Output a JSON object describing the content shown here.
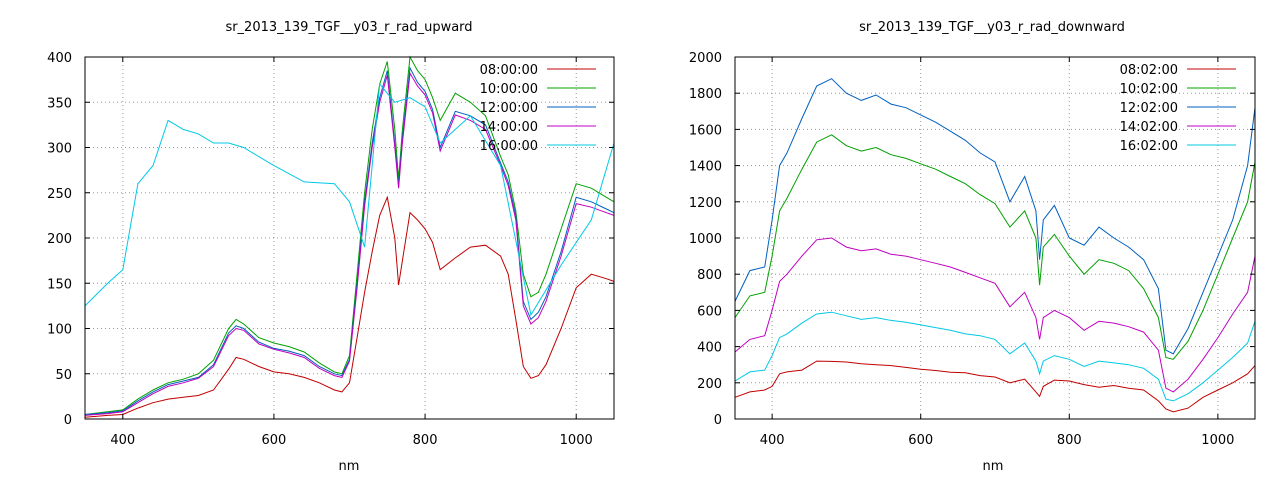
{
  "charts": [
    {
      "title": "sr_2013_139_TGF__y03_r_rad_upward",
      "xlabel": "nm",
      "xlim": [
        350,
        1050
      ],
      "ylim": [
        0,
        400
      ],
      "xticks": [
        400,
        600,
        800,
        1000
      ],
      "yticks": [
        0,
        50,
        100,
        150,
        200,
        250,
        300,
        350,
        400
      ],
      "legend": [
        "08:00:00",
        "10:00:00",
        "12:00:00",
        "14:00:00",
        "16:00:00"
      ]
    },
    {
      "title": "sr_2013_139_TGF__y03_r_rad_downward",
      "xlabel": "nm",
      "xlim": [
        350,
        1050
      ],
      "ylim": [
        0,
        2000
      ],
      "xticks": [
        400,
        600,
        800,
        1000
      ],
      "yticks": [
        0,
        200,
        400,
        600,
        800,
        1000,
        1200,
        1400,
        1600,
        1800,
        2000
      ],
      "legend": [
        "08:02:00",
        "10:02:00",
        "12:02:00",
        "14:02:00",
        "16:02:00"
      ]
    }
  ],
  "chart_data": [
    {
      "type": "line",
      "title": "sr_2013_139_TGF__y03_r_rad_upward",
      "xlabel": "nm",
      "ylabel": "",
      "xlim": [
        350,
        1050
      ],
      "ylim": [
        0,
        400
      ],
      "grid": true,
      "legend_position": "top-right",
      "series": [
        {
          "name": "08:00:00",
          "color": "#c00000",
          "x": [
            350,
            380,
            400,
            420,
            440,
            460,
            480,
            500,
            520,
            540,
            550,
            560,
            580,
            600,
            620,
            640,
            660,
            680,
            690,
            700,
            710,
            720,
            730,
            740,
            750,
            760,
            765,
            770,
            780,
            790,
            800,
            810,
            820,
            840,
            860,
            880,
            900,
            910,
            920,
            930,
            940,
            950,
            960,
            980,
            1000,
            1020,
            1040,
            1050
          ],
          "y": [
            2,
            4,
            5,
            12,
            18,
            22,
            24,
            26,
            32,
            55,
            68,
            66,
            58,
            52,
            50,
            46,
            40,
            32,
            30,
            40,
            90,
            140,
            185,
            225,
            245,
            200,
            148,
            175,
            228,
            220,
            210,
            195,
            165,
            178,
            190,
            192,
            180,
            160,
            110,
            58,
            45,
            48,
            60,
            100,
            145,
            160,
            155,
            152
          ]
        },
        {
          "name": "10:00:00",
          "color": "#00a000",
          "x": [
            350,
            380,
            400,
            420,
            440,
            460,
            480,
            500,
            520,
            540,
            550,
            560,
            580,
            600,
            620,
            640,
            660,
            680,
            690,
            700,
            710,
            720,
            730,
            740,
            750,
            760,
            765,
            770,
            780,
            790,
            800,
            810,
            820,
            840,
            860,
            880,
            900,
            910,
            920,
            930,
            940,
            950,
            960,
            980,
            1000,
            1020,
            1040,
            1050
          ],
          "y": [
            5,
            8,
            10,
            22,
            32,
            40,
            44,
            50,
            65,
            100,
            110,
            105,
            90,
            84,
            80,
            74,
            62,
            52,
            50,
            70,
            160,
            250,
            320,
            370,
            395,
            320,
            265,
            320,
            400,
            385,
            375,
            355,
            330,
            360,
            350,
            335,
            290,
            270,
            230,
            160,
            135,
            140,
            160,
            210,
            260,
            255,
            245,
            240
          ]
        },
        {
          "name": "12:00:00",
          "color": "#0060c0",
          "x": [
            350,
            380,
            400,
            420,
            440,
            460,
            480,
            500,
            520,
            540,
            550,
            560,
            580,
            600,
            620,
            640,
            660,
            680,
            690,
            700,
            710,
            720,
            730,
            740,
            750,
            760,
            765,
            770,
            780,
            790,
            800,
            810,
            820,
            840,
            860,
            880,
            900,
            910,
            920,
            930,
            940,
            950,
            960,
            980,
            1000,
            1020,
            1040,
            1050
          ],
          "y": [
            5,
            7,
            9,
            20,
            30,
            38,
            42,
            46,
            60,
            95,
            103,
            100,
            85,
            78,
            75,
            70,
            58,
            50,
            48,
            66,
            150,
            240,
            305,
            355,
            385,
            305,
            258,
            310,
            388,
            372,
            362,
            342,
            300,
            340,
            335,
            325,
            283,
            262,
            225,
            130,
            110,
            118,
            135,
            185,
            245,
            240,
            232,
            228
          ]
        },
        {
          "name": "14:00:00",
          "color": "#c000c0",
          "x": [
            350,
            380,
            400,
            420,
            440,
            460,
            480,
            500,
            520,
            540,
            550,
            560,
            580,
            600,
            620,
            640,
            660,
            680,
            690,
            700,
            710,
            720,
            730,
            740,
            750,
            760,
            765,
            770,
            780,
            790,
            800,
            810,
            820,
            840,
            860,
            880,
            900,
            910,
            920,
            930,
            940,
            950,
            960,
            980,
            1000,
            1020,
            1040,
            1050
          ],
          "y": [
            4,
            6,
            8,
            18,
            28,
            36,
            40,
            45,
            58,
            92,
            100,
            98,
            83,
            77,
            73,
            68,
            56,
            48,
            46,
            64,
            145,
            235,
            300,
            350,
            380,
            300,
            255,
            305,
            382,
            368,
            358,
            338,
            296,
            336,
            330,
            320,
            280,
            258,
            220,
            125,
            105,
            112,
            130,
            180,
            238,
            234,
            228,
            225
          ]
        },
        {
          "name": "16:00:00",
          "color": "#00c8e6",
          "x": [
            350,
            380,
            400,
            420,
            440,
            460,
            480,
            500,
            520,
            540,
            560,
            600,
            640,
            680,
            700,
            720,
            740,
            760,
            780,
            800,
            820,
            860,
            900,
            940,
            980,
            1020,
            1050
          ],
          "y": [
            125,
            150,
            165,
            260,
            280,
            330,
            320,
            315,
            305,
            305,
            300,
            280,
            262,
            260,
            240,
            190,
            370,
            350,
            355,
            345,
            305,
            335,
            280,
            115,
            170,
            220,
            305
          ]
        }
      ]
    },
    {
      "type": "line",
      "title": "sr_2013_139_TGF__y03_r_rad_downward",
      "xlabel": "nm",
      "ylabel": "",
      "xlim": [
        350,
        1050
      ],
      "ylim": [
        0,
        2000
      ],
      "grid": true,
      "legend_position": "top-right",
      "series": [
        {
          "name": "08:02:00",
          "color": "#c00000",
          "x": [
            350,
            370,
            390,
            400,
            410,
            420,
            440,
            460,
            480,
            500,
            520,
            540,
            560,
            580,
            600,
            620,
            640,
            660,
            680,
            700,
            720,
            740,
            755,
            760,
            765,
            780,
            800,
            820,
            840,
            860,
            880,
            900,
            920,
            930,
            940,
            960,
            980,
            1000,
            1020,
            1040,
            1050
          ],
          "y": [
            120,
            150,
            160,
            180,
            250,
            260,
            270,
            320,
            318,
            315,
            305,
            300,
            295,
            285,
            275,
            268,
            258,
            255,
            240,
            232,
            200,
            220,
            150,
            125,
            180,
            215,
            210,
            190,
            175,
            185,
            170,
            160,
            100,
            55,
            40,
            60,
            120,
            160,
            200,
            250,
            295
          ]
        },
        {
          "name": "10:02:00",
          "color": "#00a000",
          "x": [
            350,
            370,
            390,
            400,
            410,
            420,
            440,
            460,
            480,
            500,
            520,
            540,
            560,
            580,
            600,
            620,
            640,
            660,
            680,
            700,
            720,
            740,
            755,
            760,
            765,
            780,
            800,
            820,
            840,
            860,
            880,
            900,
            920,
            930,
            940,
            960,
            980,
            1000,
            1020,
            1040,
            1050
          ],
          "y": [
            560,
            680,
            700,
            900,
            1150,
            1220,
            1380,
            1530,
            1570,
            1510,
            1480,
            1500,
            1460,
            1440,
            1410,
            1380,
            1340,
            1300,
            1240,
            1190,
            1060,
            1150,
            1000,
            740,
            950,
            1020,
            900,
            800,
            880,
            860,
            820,
            720,
            560,
            340,
            330,
            430,
            600,
            800,
            1000,
            1200,
            1420
          ]
        },
        {
          "name": "12:02:00",
          "color": "#0060c0",
          "x": [
            350,
            370,
            390,
            400,
            410,
            420,
            440,
            460,
            480,
            500,
            520,
            540,
            560,
            580,
            600,
            620,
            640,
            660,
            680,
            700,
            720,
            740,
            755,
            760,
            765,
            780,
            800,
            820,
            840,
            860,
            880,
            900,
            920,
            930,
            940,
            960,
            980,
            1000,
            1020,
            1040,
            1050
          ],
          "y": [
            650,
            820,
            840,
            1100,
            1400,
            1470,
            1660,
            1840,
            1880,
            1800,
            1760,
            1790,
            1740,
            1720,
            1680,
            1640,
            1590,
            1540,
            1470,
            1420,
            1200,
            1340,
            1150,
            880,
            1100,
            1180,
            1000,
            960,
            1060,
            1000,
            950,
            880,
            720,
            380,
            360,
            500,
            700,
            900,
            1100,
            1400,
            1720
          ]
        },
        {
          "name": "14:02:00",
          "color": "#c000c0",
          "x": [
            350,
            370,
            390,
            400,
            410,
            420,
            440,
            460,
            480,
            500,
            520,
            540,
            560,
            580,
            600,
            620,
            640,
            660,
            680,
            700,
            720,
            740,
            755,
            760,
            765,
            780,
            800,
            820,
            840,
            860,
            880,
            900,
            920,
            930,
            940,
            960,
            980,
            1000,
            1020,
            1040,
            1050
          ],
          "y": [
            370,
            440,
            460,
            600,
            760,
            800,
            900,
            990,
            1000,
            950,
            930,
            940,
            910,
            900,
            880,
            860,
            840,
            810,
            780,
            750,
            620,
            700,
            560,
            440,
            560,
            600,
            560,
            490,
            540,
            530,
            510,
            480,
            380,
            170,
            150,
            220,
            330,
            450,
            580,
            700,
            900
          ]
        },
        {
          "name": "16:02:00",
          "color": "#00c8e6",
          "x": [
            350,
            370,
            390,
            400,
            410,
            420,
            440,
            460,
            480,
            500,
            520,
            540,
            560,
            580,
            600,
            620,
            640,
            660,
            680,
            700,
            720,
            740,
            755,
            760,
            765,
            780,
            800,
            820,
            840,
            860,
            880,
            900,
            920,
            930,
            940,
            960,
            980,
            1000,
            1020,
            1040,
            1050
          ],
          "y": [
            210,
            260,
            270,
            350,
            450,
            470,
            530,
            580,
            590,
            570,
            550,
            560,
            545,
            535,
            520,
            505,
            490,
            470,
            460,
            440,
            360,
            420,
            320,
            250,
            320,
            350,
            330,
            290,
            320,
            310,
            300,
            280,
            220,
            110,
            100,
            140,
            200,
            270,
            340,
            420,
            540
          ]
        }
      ]
    }
  ]
}
